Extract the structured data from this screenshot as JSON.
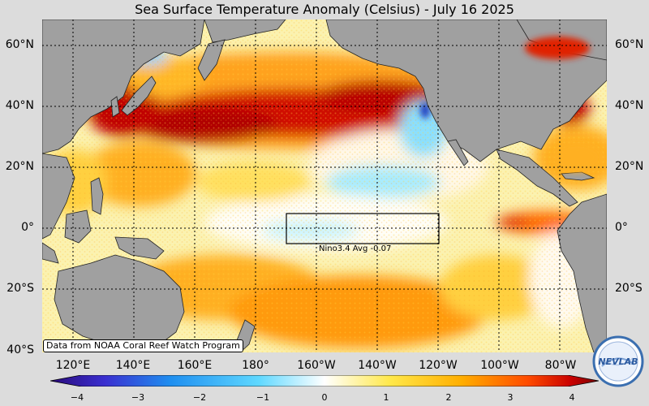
{
  "title": "Sea Surface Temperature Anomaly (Celsius) - July 16 2025",
  "lat_labels": [
    "60°N",
    "40°N",
    "20°N",
    "0°",
    "20°S",
    "40°S"
  ],
  "lon_labels": [
    "120°E",
    "140°E",
    "160°E",
    "180°",
    "160°W",
    "140°W",
    "120°W",
    "100°W",
    "80°W"
  ],
  "nino_label": "Nino3.4 Avg  -0.07",
  "nino34_avg": -0.07,
  "source_note": "Data from NOAA Coral Reef Watch Program",
  "colorbar": {
    "ticks": [
      "−4",
      "−3",
      "−2",
      "−1",
      "0",
      "1",
      "2",
      "3",
      "4"
    ],
    "min": -4,
    "max": 4,
    "colors": [
      "#2a0a7a",
      "#3a2fd0",
      "#1f8ff0",
      "#5fd8ff",
      "#ffffff",
      "#ffe84a",
      "#ffae00",
      "#ff4c00",
      "#c80000",
      "#7a0000"
    ]
  },
  "logo_text": "NEVLAB",
  "colors": {
    "land": "#a0a0a0",
    "ocean_base": "#fbf6cc",
    "warm": "#ff9a1a",
    "hot": "#c00000",
    "cool": "#8ae6ff"
  }
}
